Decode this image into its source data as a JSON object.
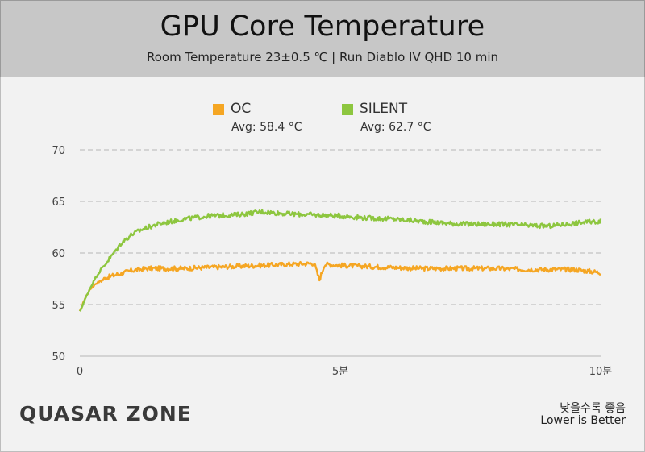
{
  "header": {
    "title": "GPU Core Temperature",
    "subtitle": "Room Temperature 23±0.5 ℃  |  Run Diablo IV QHD 10 min"
  },
  "legend": [
    {
      "label": "OC",
      "avg": "Avg: 58.4 °C",
      "color": "#f5a623"
    },
    {
      "label": "SILENT",
      "avg": "Avg: 62.7 °C",
      "color": "#8dc63f"
    }
  ],
  "footer": {
    "logo_text": "QUASAR ZONE",
    "note_korean": "낮을수록 좋음",
    "note_english": "Lower is Better"
  },
  "chart_data": {
    "type": "line",
    "title": "GPU Core Temperature",
    "ylim": [
      50,
      70
    ],
    "yticks": [
      "50",
      "55",
      "60",
      "65",
      "70"
    ],
    "xlim": [
      0,
      10
    ],
    "xticks": [
      {
        "value": 0,
        "label": "0"
      },
      {
        "value": 5,
        "label": "5분"
      },
      {
        "value": 10,
        "label": "10분"
      }
    ],
    "grid": true,
    "legend_position": "top",
    "series": [
      {
        "name": "OC",
        "color": "#f5a623",
        "x": [
          0,
          0.1,
          0.2,
          0.3,
          0.5,
          0.7,
          1.0,
          1.3,
          1.5,
          2.0,
          2.5,
          3.0,
          3.5,
          4.0,
          4.5,
          4.6,
          4.7,
          5.0,
          5.5,
          6.0,
          6.5,
          7.0,
          7.5,
          8.0,
          8.5,
          9.0,
          9.5,
          10.0
        ],
        "values": [
          54.3,
          55.6,
          56.5,
          57.0,
          57.6,
          57.9,
          58.3,
          58.5,
          58.5,
          58.5,
          58.6,
          58.7,
          58.8,
          58.9,
          59.0,
          57.4,
          58.9,
          58.8,
          58.7,
          58.6,
          58.5,
          58.5,
          58.5,
          58.5,
          58.4,
          58.4,
          58.4,
          58.1
        ]
      },
      {
        "name": "SILENT",
        "color": "#8dc63f",
        "x": [
          0,
          0.1,
          0.2,
          0.3,
          0.5,
          0.7,
          0.8,
          1.0,
          1.2,
          1.5,
          2.0,
          2.5,
          3.0,
          3.5,
          4.0,
          4.5,
          5.0,
          5.5,
          6.0,
          6.5,
          7.0,
          7.5,
          8.0,
          8.5,
          9.0,
          9.5,
          10.0
        ],
        "values": [
          54.3,
          55.5,
          56.6,
          57.6,
          59.0,
          60.3,
          61.0,
          61.8,
          62.3,
          62.8,
          63.3,
          63.6,
          63.7,
          64.0,
          63.8,
          63.7,
          63.6,
          63.4,
          63.3,
          63.1,
          62.9,
          62.8,
          62.8,
          62.7,
          62.6,
          62.9,
          63.1
        ]
      }
    ]
  }
}
